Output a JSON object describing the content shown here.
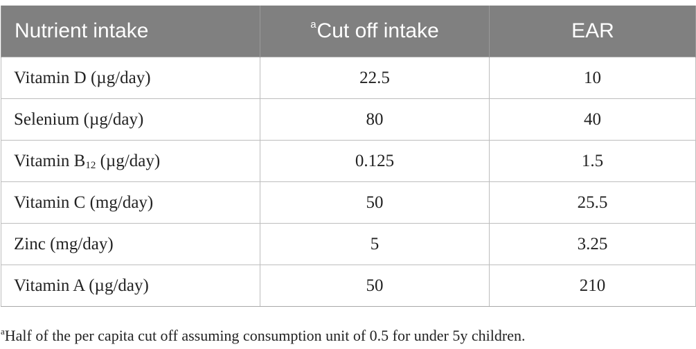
{
  "table": {
    "headers": [
      {
        "sup": "",
        "text": "Nutrient intake"
      },
      {
        "sup": "a",
        "text": "Cut off intake"
      },
      {
        "sup": "",
        "text": "EAR"
      }
    ],
    "rows": [
      {
        "nutrient": "Vitamin D (µg/day)",
        "nutrient_pre": "Vitamin D (µg/day)",
        "nutrient_sub": "",
        "nutrient_post": "",
        "cutoff": "22.5",
        "ear": "10"
      },
      {
        "nutrient": "Selenium (µg/day)",
        "nutrient_pre": "Selenium (µg/day)",
        "nutrient_sub": "",
        "nutrient_post": "",
        "cutoff": "80",
        "ear": "40"
      },
      {
        "nutrient": "Vitamin B12 (µg/day)",
        "nutrient_pre": "Vitamin B",
        "nutrient_sub": "12",
        "nutrient_post": " (µg/day)",
        "cutoff": "0.125",
        "ear": "1.5"
      },
      {
        "nutrient": "Vitamin C (mg/day)",
        "nutrient_pre": "Vitamin C (mg/day)",
        "nutrient_sub": "",
        "nutrient_post": "",
        "cutoff": "50",
        "ear": "25.5"
      },
      {
        "nutrient": "Zinc (mg/day)",
        "nutrient_pre": "Zinc (mg/day)",
        "nutrient_sub": "",
        "nutrient_post": "",
        "cutoff": "5",
        "ear": "3.25"
      },
      {
        "nutrient": "Vitamin A (µg/day)",
        "nutrient_pre": "Vitamin A (µg/day)",
        "nutrient_sub": "",
        "nutrient_post": "",
        "cutoff": "50",
        "ear": "210"
      }
    ],
    "footnote": {
      "sup": "a",
      "text": "Half of the per capita cut off assuming consumption unit of 0.5 for under 5y children."
    }
  },
  "colors": {
    "header_bg": "#808080",
    "header_text": "#ffffff",
    "body_text": "#222222",
    "grid": "#bdbdbd"
  }
}
